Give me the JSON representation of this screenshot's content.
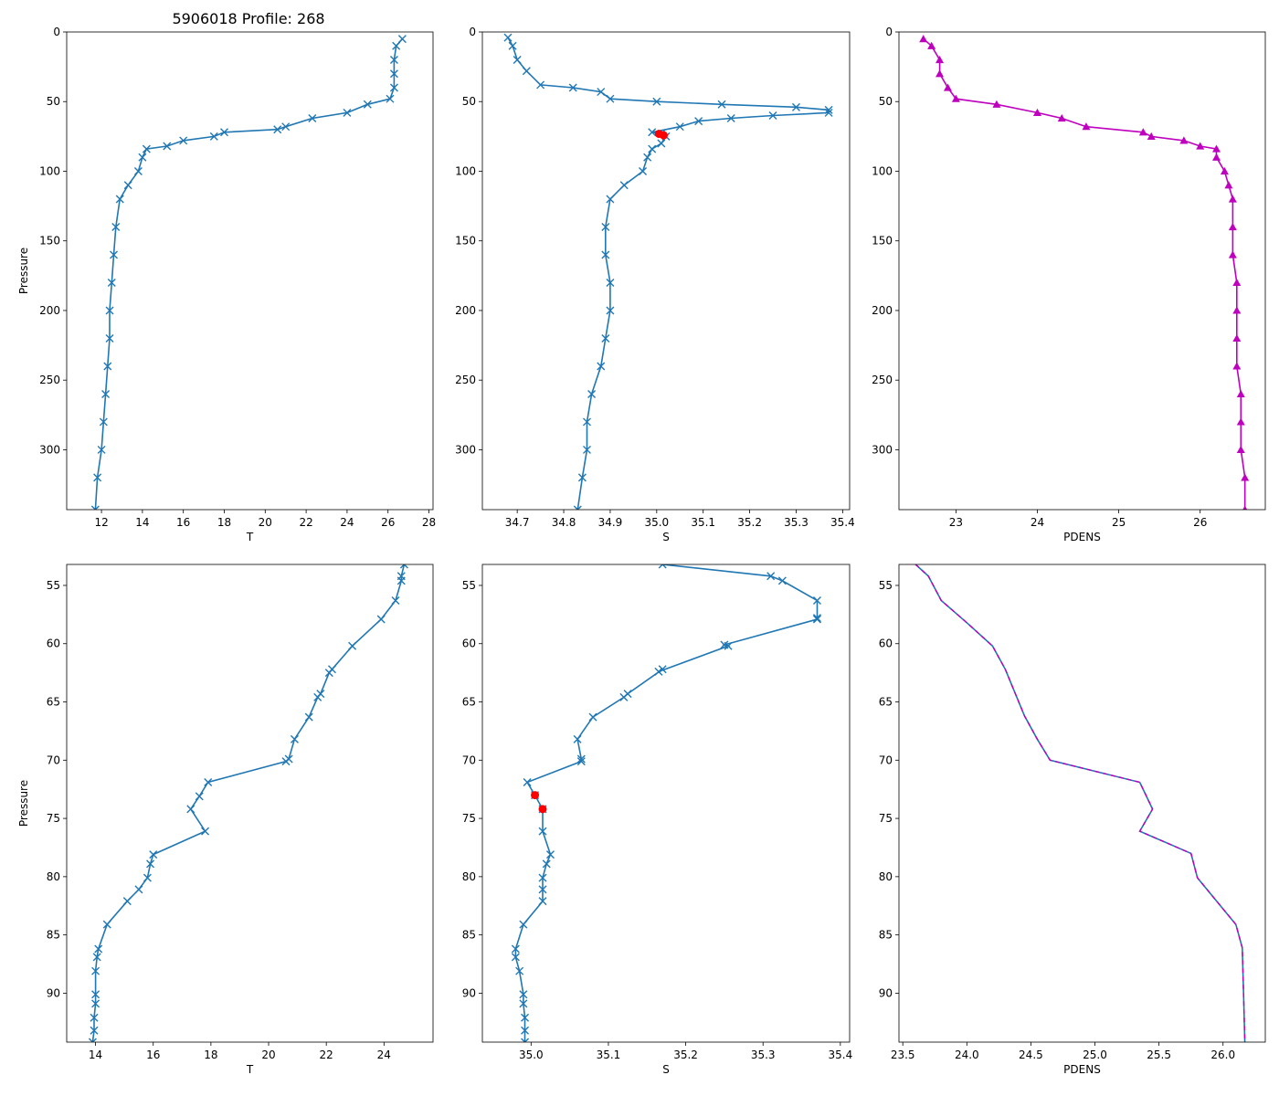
{
  "title": "5906018 Profile: 268",
  "colors": {
    "line": "#1f77b4",
    "flag": "#ff0000",
    "density": "#bf00bf"
  },
  "chart_data": [
    {
      "id": "temp-full",
      "type": "line",
      "marker": "x",
      "line_color": "#1f77b4",
      "xlabel": "T",
      "ylabel": "Pressure",
      "xlim": [
        10.3,
        28.2
      ],
      "ylim": [
        343,
        0
      ],
      "xticks": [
        12,
        14,
        16,
        18,
        20,
        22,
        24,
        26,
        28
      ],
      "yticks": [
        0,
        50,
        100,
        150,
        200,
        250,
        300
      ],
      "profile": [
        [
          26.7,
          5
        ],
        [
          26.4,
          10
        ],
        [
          26.3,
          20
        ],
        [
          26.3,
          30
        ],
        [
          26.3,
          40
        ],
        [
          26.1,
          48
        ],
        [
          25.0,
          52
        ],
        [
          24.0,
          58
        ],
        [
          22.3,
          62
        ],
        [
          21.0,
          68
        ],
        [
          20.6,
          70
        ],
        [
          18.0,
          72
        ],
        [
          17.5,
          75
        ],
        [
          16.0,
          78
        ],
        [
          15.2,
          82
        ],
        [
          14.2,
          84
        ],
        [
          14.0,
          90
        ],
        [
          13.8,
          100
        ],
        [
          13.3,
          110
        ],
        [
          12.9,
          120
        ],
        [
          12.7,
          140
        ],
        [
          12.6,
          160
        ],
        [
          12.5,
          180
        ],
        [
          12.4,
          200
        ],
        [
          12.4,
          220
        ],
        [
          12.3,
          240
        ],
        [
          12.2,
          260
        ],
        [
          12.1,
          280
        ],
        [
          12.0,
          300
        ],
        [
          11.8,
          320
        ],
        [
          11.7,
          343
        ]
      ]
    },
    {
      "id": "sal-full",
      "type": "line",
      "marker": "x",
      "line_color": "#1f77b4",
      "xlabel": "S",
      "ylabel": "",
      "xlim": [
        34.625,
        35.415
      ],
      "ylim": [
        343,
        0
      ],
      "xticks": [
        34.7,
        34.8,
        34.9,
        35.0,
        35.1,
        35.2,
        35.3,
        35.4
      ],
      "yticks": [
        0,
        50,
        100,
        150,
        200,
        250,
        300
      ],
      "profile": [
        [
          34.68,
          4
        ],
        [
          34.69,
          10
        ],
        [
          34.7,
          20
        ],
        [
          34.72,
          28
        ],
        [
          34.75,
          38
        ],
        [
          34.82,
          40
        ],
        [
          34.88,
          43
        ],
        [
          34.9,
          48
        ],
        [
          35.0,
          50
        ],
        [
          35.14,
          52
        ],
        [
          35.3,
          54
        ],
        [
          35.37,
          56
        ],
        [
          35.37,
          58
        ],
        [
          35.25,
          60
        ],
        [
          35.16,
          62
        ],
        [
          35.09,
          64
        ],
        [
          35.05,
          68
        ],
        [
          34.99,
          72
        ],
        [
          35.01,
          73
        ],
        [
          35.02,
          75
        ],
        [
          35.01,
          80
        ],
        [
          34.99,
          84
        ],
        [
          34.98,
          90
        ],
        [
          34.97,
          100
        ],
        [
          34.93,
          110
        ],
        [
          34.9,
          120
        ],
        [
          34.89,
          140
        ],
        [
          34.89,
          160
        ],
        [
          34.9,
          180
        ],
        [
          34.9,
          200
        ],
        [
          34.89,
          220
        ],
        [
          34.88,
          240
        ],
        [
          34.86,
          260
        ],
        [
          34.85,
          280
        ],
        [
          34.85,
          300
        ],
        [
          34.84,
          320
        ],
        [
          34.83,
          343
        ]
      ],
      "flagged": [
        [
          35.005,
          73.2
        ],
        [
          35.015,
          74.2
        ]
      ]
    },
    {
      "id": "dens-full",
      "type": "line",
      "marker": "triangle",
      "line_color": "#bf00bf",
      "xlabel": "PDENS",
      "ylabel": "",
      "xlim": [
        22.3,
        26.8
      ],
      "ylim": [
        343,
        0
      ],
      "xticks": [
        23,
        24,
        25,
        26
      ],
      "yticks": [
        0,
        50,
        100,
        150,
        200,
        250,
        300
      ],
      "profile": [
        [
          22.6,
          5
        ],
        [
          22.7,
          10
        ],
        [
          22.8,
          20
        ],
        [
          22.8,
          30
        ],
        [
          22.9,
          40
        ],
        [
          23.0,
          48
        ],
        [
          23.5,
          52
        ],
        [
          24.0,
          58
        ],
        [
          24.3,
          62
        ],
        [
          24.6,
          68
        ],
        [
          25.3,
          72
        ],
        [
          25.4,
          75
        ],
        [
          25.8,
          78
        ],
        [
          26.0,
          82
        ],
        [
          26.2,
          84
        ],
        [
          26.2,
          90
        ],
        [
          26.3,
          100
        ],
        [
          26.35,
          110
        ],
        [
          26.4,
          120
        ],
        [
          26.4,
          140
        ],
        [
          26.4,
          160
        ],
        [
          26.45,
          180
        ],
        [
          26.45,
          200
        ],
        [
          26.45,
          220
        ],
        [
          26.45,
          240
        ],
        [
          26.5,
          260
        ],
        [
          26.5,
          280
        ],
        [
          26.5,
          300
        ],
        [
          26.55,
          320
        ],
        [
          26.55,
          343
        ]
      ]
    },
    {
      "id": "temp-zoom",
      "type": "line",
      "marker": "x",
      "line_color": "#1f77b4",
      "xlabel": "T",
      "ylabel": "Pressure",
      "xlim": [
        13.0,
        25.7
      ],
      "ylim": [
        94.2,
        53.2
      ],
      "xticks": [
        14,
        16,
        18,
        20,
        22,
        24
      ],
      "yticks": [
        55,
        60,
        65,
        70,
        75,
        80,
        85,
        90
      ],
      "profile": [
        [
          24.7,
          53.2
        ],
        [
          24.6,
          54.2
        ],
        [
          24.6,
          54.6
        ],
        [
          24.4,
          56.3
        ],
        [
          23.9,
          57.9
        ],
        [
          22.9,
          60.2
        ],
        [
          22.2,
          62.2
        ],
        [
          22.1,
          62.5
        ],
        [
          21.8,
          64.3
        ],
        [
          21.7,
          64.6
        ],
        [
          21.4,
          66.3
        ],
        [
          20.9,
          68.2
        ],
        [
          20.7,
          69.9
        ],
        [
          20.6,
          70.1
        ],
        [
          17.9,
          71.9
        ],
        [
          17.6,
          73.1
        ],
        [
          17.3,
          74.2
        ],
        [
          17.8,
          76.1
        ],
        [
          16.0,
          78.1
        ],
        [
          15.9,
          78.9
        ],
        [
          15.8,
          80.1
        ],
        [
          15.5,
          81.1
        ],
        [
          15.1,
          82.1
        ],
        [
          14.4,
          84.1
        ],
        [
          14.1,
          86.2
        ],
        [
          14.05,
          86.9
        ],
        [
          14.0,
          88.1
        ],
        [
          14.0,
          90.1
        ],
        [
          14.0,
          90.9
        ],
        [
          13.95,
          92.1
        ],
        [
          13.95,
          93.2
        ],
        [
          13.9,
          94.2
        ]
      ]
    },
    {
      "id": "sal-zoom",
      "type": "line",
      "marker": "x",
      "line_color": "#1f77b4",
      "xlabel": "S",
      "ylabel": "",
      "xlim": [
        34.937,
        35.412
      ],
      "ylim": [
        94.2,
        53.2
      ],
      "xticks": [
        35.0,
        35.1,
        35.2,
        35.3,
        35.4
      ],
      "yticks": [
        55,
        60,
        65,
        70,
        75,
        80,
        85,
        90
      ],
      "profile": [
        [
          35.17,
          53.2
        ],
        [
          35.31,
          54.2
        ],
        [
          35.325,
          54.6
        ],
        [
          35.37,
          56.3
        ],
        [
          35.37,
          57.8
        ],
        [
          35.37,
          57.9
        ],
        [
          35.25,
          60.1
        ],
        [
          35.255,
          60.2
        ],
        [
          35.165,
          62.4
        ],
        [
          35.17,
          62.2
        ],
        [
          35.125,
          64.3
        ],
        [
          35.12,
          64.6
        ],
        [
          35.08,
          66.3
        ],
        [
          35.06,
          68.2
        ],
        [
          35.065,
          69.9
        ],
        [
          35.065,
          70.1
        ],
        [
          34.995,
          71.9
        ],
        [
          35.005,
          73.0
        ],
        [
          35.015,
          74.2
        ],
        [
          35.015,
          76.1
        ],
        [
          35.025,
          78.1
        ],
        [
          35.02,
          78.9
        ],
        [
          35.015,
          80.1
        ],
        [
          35.015,
          81.1
        ],
        [
          35.015,
          82.1
        ],
        [
          34.99,
          84.1
        ],
        [
          34.98,
          86.2
        ],
        [
          34.98,
          86.9
        ],
        [
          34.985,
          88.1
        ],
        [
          34.99,
          90.1
        ],
        [
          34.99,
          90.9
        ],
        [
          34.992,
          92.1
        ],
        [
          34.992,
          93.2
        ],
        [
          34.992,
          94.2
        ]
      ],
      "flagged": [
        [
          35.005,
          73.0
        ],
        [
          35.015,
          74.2
        ]
      ]
    },
    {
      "id": "dens-zoom",
      "type": "line",
      "marker": "none",
      "line_color": "#1f77b4",
      "overlay_color": "#bf00bf",
      "xlabel": "PDENS",
      "ylabel": "",
      "xlim": [
        23.47,
        26.33
      ],
      "ylim": [
        94.2,
        53.2
      ],
      "xticks": [
        23.5,
        24.0,
        24.5,
        25.0,
        25.5,
        26.0
      ],
      "yticks": [
        55,
        60,
        65,
        70,
        75,
        80,
        85,
        90
      ],
      "profile": [
        [
          23.6,
          53.2
        ],
        [
          23.7,
          54.2
        ],
        [
          23.8,
          56.3
        ],
        [
          24.0,
          58.2
        ],
        [
          24.2,
          60.2
        ],
        [
          24.3,
          62.2
        ],
        [
          24.45,
          66.2
        ],
        [
          24.55,
          68.2
        ],
        [
          24.65,
          70.0
        ],
        [
          25.35,
          71.9
        ],
        [
          25.45,
          74.2
        ],
        [
          25.35,
          76.1
        ],
        [
          25.75,
          78.0
        ],
        [
          25.8,
          80.1
        ],
        [
          26.1,
          84.1
        ],
        [
          26.15,
          86.1
        ],
        [
          26.16,
          90.0
        ],
        [
          26.17,
          94.2
        ]
      ]
    }
  ]
}
